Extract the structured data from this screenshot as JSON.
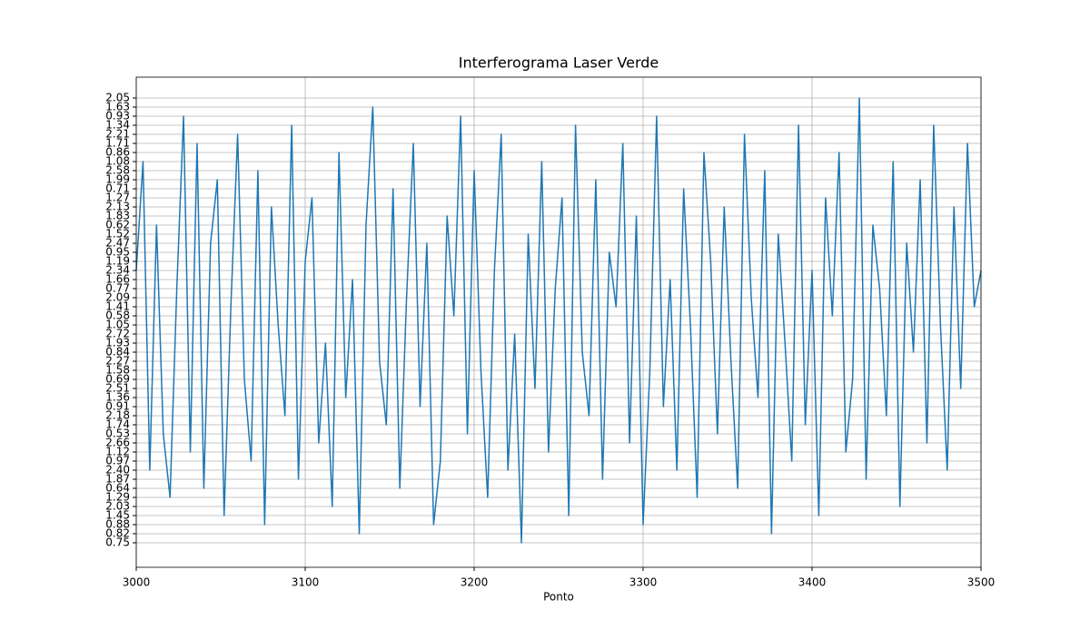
{
  "chart_data": {
    "type": "line",
    "title": "Interferograma Laser Verde",
    "x_label": "Ponto",
    "x": [
      3000,
      3004,
      3008,
      3012,
      3016,
      3020,
      3024,
      3028,
      3032,
      3036,
      3040,
      3044,
      3048,
      3052,
      3056,
      3060,
      3064,
      3068,
      3072,
      3076,
      3080,
      3084,
      3088,
      3092,
      3096,
      3100,
      3104,
      3108,
      3112,
      3116,
      3120,
      3124,
      3128,
      3132,
      3136,
      3140,
      3144,
      3148,
      3152,
      3156,
      3160,
      3164,
      3168,
      3172,
      3176,
      3180,
      3184,
      3188,
      3192,
      3196,
      3200,
      3204,
      3208,
      3212,
      3216,
      3220,
      3224,
      3228,
      3232,
      3236,
      3240,
      3244,
      3248,
      3252,
      3256,
      3260,
      3264,
      3268,
      3272,
      3276,
      3280,
      3284,
      3288,
      3292,
      3296,
      3300,
      3304,
      3308,
      3312,
      3316,
      3320,
      3324,
      3328,
      3332,
      3336,
      3340,
      3344,
      3348,
      3352,
      3356,
      3360,
      3364,
      3368,
      3372,
      3376,
      3380,
      3384,
      3388,
      3392,
      3396,
      3400,
      3404,
      3408,
      3412,
      3416,
      3420,
      3424,
      3428,
      3432,
      3436,
      3440,
      3444,
      3448,
      3452,
      3456,
      3460,
      3464,
      3468,
      3472,
      3476,
      3480,
      3484,
      3488,
      3492,
      3496,
      3500
    ],
    "series": [
      {
        "color": "#1f77b4",
        "values": [
          30,
          42,
          8,
          35,
          12,
          5,
          28,
          47,
          10,
          44,
          6,
          33,
          40,
          3,
          26,
          45,
          18,
          9,
          41,
          2,
          37,
          24,
          14,
          46,
          7,
          31,
          38,
          11,
          22,
          4,
          43,
          16,
          29,
          1,
          35,
          48,
          20,
          13,
          39,
          6,
          27,
          44,
          15,
          33,
          2,
          9,
          36,
          25,
          47,
          12,
          41,
          19,
          5,
          30,
          45,
          8,
          23,
          0,
          34,
          17,
          42,
          10,
          28,
          38,
          3,
          46,
          21,
          14,
          40,
          7,
          32,
          26,
          44,
          11,
          36,
          2,
          19,
          47,
          15,
          29,
          8,
          39,
          24,
          5,
          43,
          31,
          12,
          37,
          20,
          6,
          45,
          27,
          16,
          41,
          1,
          34,
          22,
          9,
          46,
          13,
          30,
          3,
          38,
          25,
          43,
          10,
          18,
          49,
          7,
          35,
          28,
          14,
          42,
          4,
          33,
          21,
          40,
          11,
          46,
          24,
          8,
          37,
          17,
          44,
          26,
          30
        ]
      }
    ],
    "xlim": [
      3000,
      3500
    ],
    "xticks": [
      3000,
      3100,
      3200,
      3300,
      3400,
      3500
    ],
    "ylim": [
      -2.7,
      51.3
    ],
    "yticks": [
      {
        "value": 0,
        "label": "0.75"
      },
      {
        "value": 1,
        "label": "0.82"
      },
      {
        "value": 2,
        "label": "0.88"
      },
      {
        "value": 3,
        "label": "1.45"
      },
      {
        "value": 4,
        "label": "2.03"
      },
      {
        "value": 5,
        "label": "1.29"
      },
      {
        "value": 6,
        "label": "0.64"
      },
      {
        "value": 7,
        "label": "1.87"
      },
      {
        "value": 8,
        "label": "2.40"
      },
      {
        "value": 9,
        "label": "0.97"
      },
      {
        "value": 10,
        "label": "1.12"
      },
      {
        "value": 11,
        "label": "2.66"
      },
      {
        "value": 12,
        "label": "0.53"
      },
      {
        "value": 13,
        "label": "1.74"
      },
      {
        "value": 14,
        "label": "2.18"
      },
      {
        "value": 15,
        "label": "0.91"
      },
      {
        "value": 16,
        "label": "1.36"
      },
      {
        "value": 17,
        "label": "2.51"
      },
      {
        "value": 18,
        "label": "0.69"
      },
      {
        "value": 19,
        "label": "1.58"
      },
      {
        "value": 20,
        "label": "2.27"
      },
      {
        "value": 21,
        "label": "0.84"
      },
      {
        "value": 22,
        "label": "1.93"
      },
      {
        "value": 23,
        "label": "2.72"
      },
      {
        "value": 24,
        "label": "1.05"
      },
      {
        "value": 25,
        "label": "0.58"
      },
      {
        "value": 26,
        "label": "1.41"
      },
      {
        "value": 27,
        "label": "2.09"
      },
      {
        "value": 28,
        "label": "0.77"
      },
      {
        "value": 29,
        "label": "1.66"
      },
      {
        "value": 30,
        "label": "2.34"
      },
      {
        "value": 31,
        "label": "1.19"
      },
      {
        "value": 32,
        "label": "0.95"
      },
      {
        "value": 33,
        "label": "2.47"
      },
      {
        "value": 34,
        "label": "1.52"
      },
      {
        "value": 35,
        "label": "0.62"
      },
      {
        "value": 36,
        "label": "1.83"
      },
      {
        "value": 37,
        "label": "2.13"
      },
      {
        "value": 38,
        "label": "1.27"
      },
      {
        "value": 39,
        "label": "0.71"
      },
      {
        "value": 40,
        "label": "1.99"
      },
      {
        "value": 41,
        "label": "2.58"
      },
      {
        "value": 42,
        "label": "1.08"
      },
      {
        "value": 43,
        "label": "0.86"
      },
      {
        "value": 44,
        "label": "1.71"
      },
      {
        "value": 45,
        "label": "2.21"
      },
      {
        "value": 46,
        "label": "1.34"
      },
      {
        "value": 47,
        "label": "0.93"
      },
      {
        "value": 48,
        "label": "1.63"
      },
      {
        "value": 49,
        "label": "2.05"
      }
    ],
    "grid": true
  }
}
